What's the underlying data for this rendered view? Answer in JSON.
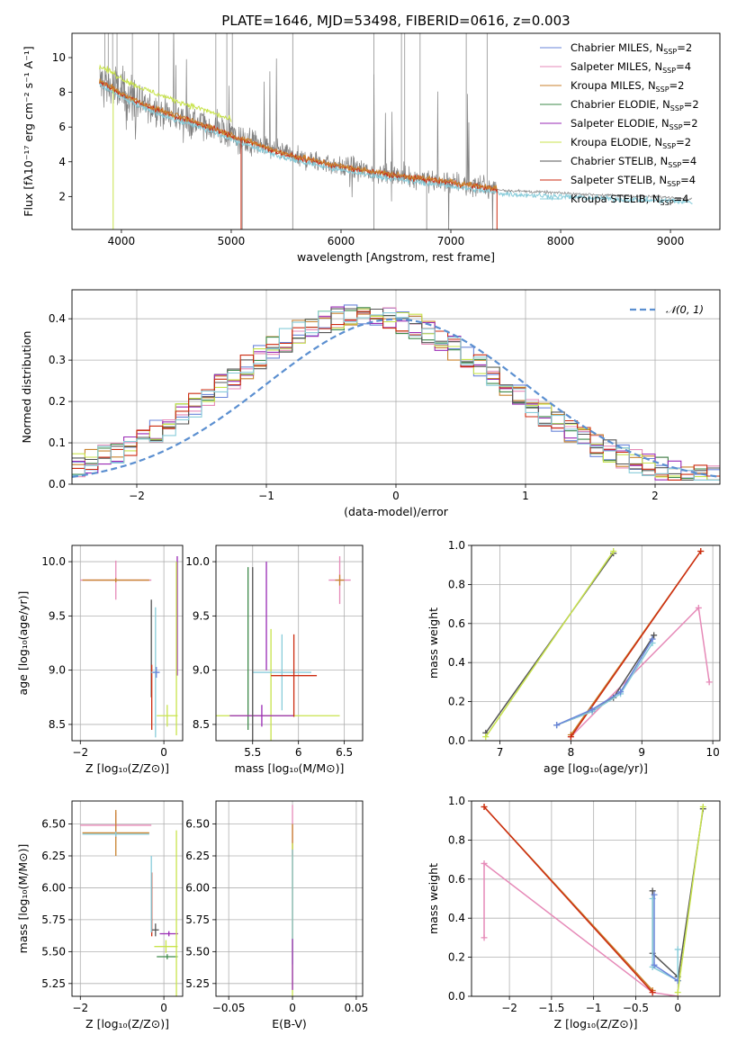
{
  "figure": {
    "title": "PLATE=1646, MJD=53498, FIBERID=0616, z=0.003"
  },
  "colors": {
    "chabrier_miles": "#6a85d9",
    "salpeter_miles": "#e68ab8",
    "kroupa_miles": "#c8822e",
    "chabrier_elodie": "#3e8a4a",
    "salpeter_elodie": "#9a2ab5",
    "kroupa_elodie": "#c8e34c",
    "chabrier_stelib": "#555555",
    "salpeter_stelib": "#cc2b10",
    "kroupa_stelib": "#88ccda",
    "data": "#808080",
    "normal": "#5b8fd0"
  },
  "legend": [
    {
      "key": "chabrier_miles",
      "label": "Chabrier MILES, N",
      "sub": "SSP",
      "suffix": "=2"
    },
    {
      "key": "salpeter_miles",
      "label": "Salpeter MILES, N",
      "sub": "SSP",
      "suffix": "=4"
    },
    {
      "key": "kroupa_miles",
      "label": "Kroupa MILES, N",
      "sub": "SSP",
      "suffix": "=2"
    },
    {
      "key": "chabrier_elodie",
      "label": "Chabrier ELODIE, N",
      "sub": "SSP",
      "suffix": "=2"
    },
    {
      "key": "salpeter_elodie",
      "label": "Salpeter ELODIE, N",
      "sub": "SSP",
      "suffix": "=2"
    },
    {
      "key": "kroupa_elodie",
      "label": "Kroupa ELODIE, N",
      "sub": "SSP",
      "suffix": "=2"
    },
    {
      "key": "chabrier_stelib",
      "label": "Chabrier STELIB, N",
      "sub": "SSP",
      "suffix": "=4"
    },
    {
      "key": "salpeter_stelib",
      "label": "Salpeter STELIB, N",
      "sub": "SSP",
      "suffix": "=4"
    },
    {
      "key": "kroupa_stelib",
      "label": "Kroupa STELIB, N",
      "sub": "SSP",
      "suffix": "=4"
    }
  ],
  "chart_data": [
    {
      "id": "spectrum",
      "type": "line",
      "xlabel": "wavelength [Angstrom, rest frame]",
      "ylabel": "Flux [fλ10⁻¹⁷ erg cm⁻² s⁻¹ A⁻¹]",
      "xlim": [
        3550,
        9450
      ],
      "ylim": [
        0.1,
        11.4
      ],
      "xticks": [
        4000,
        5000,
        6000,
        7000,
        8000,
        9000
      ],
      "yticks": [
        2,
        4,
        6,
        8,
        10
      ],
      "continuum": {
        "x": [
          3800,
          3900,
          4000,
          4200,
          4500,
          4800,
          5000,
          5500,
          6000,
          6500,
          7000,
          7500,
          8000,
          8500,
          9000,
          9200
        ],
        "y": [
          8.6,
          8.3,
          7.9,
          7.3,
          6.6,
          6.0,
          5.5,
          4.4,
          3.7,
          3.2,
          2.8,
          2.35,
          2.2,
          2.05,
          1.95,
          1.85
        ]
      },
      "model_offsets": [
        {
          "key": "kroupa_elodie",
          "range": [
            3800,
            5000
          ],
          "dy": 0.9
        },
        {
          "key": "kroupa_stelib",
          "range": [
            3800,
            9200
          ],
          "dy": -0.2
        },
        {
          "key": "salpeter_stelib",
          "range": [
            3800,
            7420
          ],
          "dy": 0.0
        },
        {
          "key": "kroupa_miles",
          "range": [
            3800,
            7420
          ],
          "dy": 0.05
        }
      ]
    },
    {
      "id": "residuals",
      "type": "line",
      "xlabel": "(data-model)/error",
      "ylabel": "Normed distribution",
      "xlim": [
        -2.5,
        2.5
      ],
      "ylim": [
        0,
        0.47
      ],
      "xticks": [
        -2,
        -1,
        0,
        1,
        2
      ],
      "yticks": [
        0.0,
        0.1,
        0.2,
        0.3,
        0.4
      ],
      "normal_label": "𝒩(0, 1)",
      "normal": {
        "mean": 0,
        "sigma": 1
      }
    },
    {
      "id": "age_vs_Z",
      "type": "scatter",
      "xlabel": "Z [log₁₀(Z/Z⊙)]",
      "ylabel": "age  [log₁₀(age/yr)]",
      "xlim": [
        -2.2,
        0.45
      ],
      "ylim": [
        8.35,
        10.15
      ],
      "xticks": [
        -2,
        0
      ],
      "yticks": [
        8.5,
        9.0,
        9.5,
        10.0
      ],
      "points": [
        {
          "key": "salpeter_miles",
          "x": -1.15,
          "y": 9.83,
          "xerr": 0.85,
          "yerr": 0.18
        },
        {
          "key": "kroupa_miles",
          "x": -1.15,
          "y": 9.83,
          "xerr": 0.8,
          "yerr": 0.02
        },
        {
          "key": "chabrier_stelib",
          "x": -0.3,
          "y": 9.2,
          "xerr": 0.0,
          "yerr": 0.45
        },
        {
          "key": "salpeter_stelib",
          "x": -0.29,
          "y": 8.75,
          "xerr": 0.0,
          "yerr": 0.3
        },
        {
          "key": "kroupa_stelib",
          "x": -0.2,
          "y": 8.98,
          "xerr": 0.1,
          "yerr": 0.6
        },
        {
          "key": "chabrier_miles",
          "x": -0.18,
          "y": 8.98,
          "xerr": 0.08,
          "yerr": 0.05
        },
        {
          "key": "kroupa_elodie",
          "x": 0.08,
          "y": 8.58,
          "xerr": 0.25,
          "yerr": 0.1
        },
        {
          "key": "salpeter_elodie",
          "x": 0.32,
          "y": 9.5,
          "xerr": 0.0,
          "yerr": 0.55
        },
        {
          "key": "kroupa_elodie",
          "x": 0.3,
          "y": 9.2,
          "xerr": 0.0,
          "yerr": 0.8
        }
      ]
    },
    {
      "id": "age_vs_mass",
      "type": "scatter",
      "xlabel": "mass [log₁₀(M/M⊙)]",
      "ylabel": "",
      "xlim": [
        5.1,
        6.7
      ],
      "ylim": [
        8.35,
        10.15
      ],
      "xticks": [
        5.5,
        6.0,
        6.5
      ],
      "yticks": [
        8.5,
        9.0,
        9.5,
        10.0
      ],
      "points": [
        {
          "key": "chabrier_elodie",
          "x": 5.45,
          "y": 9.2,
          "xerr": 0.0,
          "yerr": 0.75
        },
        {
          "key": "salpeter_elodie",
          "x": 5.65,
          "y": 9.5,
          "xerr": 0.0,
          "yerr": 0.5
        },
        {
          "key": "kroupa_elodie",
          "x": 5.7,
          "y": 8.58,
          "xerr": 0.75,
          "yerr": 0.8
        },
        {
          "key": "salpeter_elodie",
          "x": 5.6,
          "y": 8.58,
          "xerr": 0.35,
          "yerr": 0.1
        },
        {
          "key": "kroupa_stelib",
          "x": 5.82,
          "y": 8.98,
          "xerr": 0.32,
          "yerr": 0.35
        },
        {
          "key": "salpeter_stelib",
          "x": 5.95,
          "y": 8.95,
          "xerr": 0.25,
          "yerr": 0.38
        },
        {
          "key": "chabrier_stelib",
          "x": 5.5,
          "y": 9.0,
          "xerr": 0.0,
          "yerr": 0.95
        },
        {
          "key": "salpeter_miles",
          "x": 6.45,
          "y": 9.83,
          "xerr": 0.12,
          "yerr": 0.22
        },
        {
          "key": "kroupa_miles",
          "x": 6.45,
          "y": 9.83,
          "xerr": 0.05,
          "yerr": 0.05
        }
      ]
    },
    {
      "id": "weight_vs_age",
      "type": "line",
      "xlabel": "age  [log₁₀(age/yr)]",
      "ylabel": "mass weight",
      "xlim": [
        6.6,
        10.1
      ],
      "ylim": [
        0,
        1.0
      ],
      "xticks": [
        7,
        8,
        9,
        10
      ],
      "yticks": [
        0.0,
        0.2,
        0.4,
        0.6,
        0.8,
        1.0
      ],
      "series": [
        {
          "key": "salpeter_miles",
          "x": [
            8.0,
            9.8,
            9.95
          ],
          "y": [
            0.02,
            0.68,
            0.3
          ]
        },
        {
          "key": "kroupa_miles",
          "x": [
            8.0,
            9.83
          ],
          "y": [
            0.03,
            0.97
          ]
        },
        {
          "key": "salpeter_stelib",
          "x": [
            8.0,
            9.83
          ],
          "y": [
            0.02,
            0.97
          ]
        },
        {
          "key": "chabrier_stelib",
          "x": [
            6.8,
            8.6
          ],
          "y": [
            0.04,
            0.96
          ]
        },
        {
          "key": "kroupa_elodie",
          "x": [
            6.8,
            8.6
          ],
          "y": [
            0.02,
            0.97
          ]
        },
        {
          "key": "chabrier_stelib",
          "x": [
            7.8,
            8.3,
            8.6,
            9.17
          ],
          "y": [
            0.08,
            0.15,
            0.22,
            0.54
          ]
        },
        {
          "key": "kroupa_stelib",
          "x": [
            7.8,
            8.3,
            8.7,
            9.15
          ],
          "y": [
            0.08,
            0.15,
            0.24,
            0.5
          ]
        },
        {
          "key": "chabrier_miles",
          "x": [
            7.8,
            8.3,
            8.7,
            9.15
          ],
          "y": [
            0.08,
            0.16,
            0.25,
            0.52
          ]
        }
      ]
    },
    {
      "id": "mass_vs_Z",
      "type": "scatter",
      "xlabel": "Z [log₁₀(Z/Z⊙)]",
      "ylabel": "mass [log₁₀(M/M⊙)]",
      "xlim": [
        -2.2,
        0.45
      ],
      "ylim": [
        5.15,
        6.68
      ],
      "xticks": [
        -2,
        0
      ],
      "yticks": [
        5.25,
        5.5,
        5.75,
        6.0,
        6.25,
        6.5
      ],
      "points": [
        {
          "key": "salpeter_miles",
          "x": -1.15,
          "y": 6.49,
          "xerr": 0.85,
          "yerr": 0.1
        },
        {
          "key": "kroupa_miles",
          "x": -1.15,
          "y": 6.43,
          "xerr": 0.8,
          "yerr": 0.18
        },
        {
          "key": "kroupa_stelib",
          "x": -1.15,
          "y": 6.42,
          "xerr": 0.8,
          "yerr": 0.02
        },
        {
          "key": "salpeter_stelib",
          "x": -0.29,
          "y": 5.87,
          "xerr": 0.0,
          "yerr": 0.25
        },
        {
          "key": "kroupa_stelib",
          "x": -0.3,
          "y": 5.95,
          "xerr": 0.0,
          "yerr": 0.3
        },
        {
          "key": "chabrier_stelib",
          "x": -0.2,
          "y": 5.67,
          "xerr": 0.08,
          "yerr": 0.05
        },
        {
          "key": "kroupa_elodie",
          "x": 0.05,
          "y": 5.54,
          "xerr": 0.28,
          "yerr": 0.05
        },
        {
          "key": "salpeter_elodie",
          "x": 0.12,
          "y": 5.64,
          "xerr": 0.22,
          "yerr": 0.02
        },
        {
          "key": "chabrier_elodie",
          "x": 0.08,
          "y": 5.46,
          "xerr": 0.25,
          "yerr": 0.02
        },
        {
          "key": "kroupa_elodie",
          "x": 0.3,
          "y": 5.8,
          "xerr": 0.0,
          "yerr": 0.65
        }
      ]
    },
    {
      "id": "mass_vs_ebv",
      "type": "scatter",
      "xlabel": "E(B-V)",
      "ylabel": "",
      "xlim": [
        -0.06,
        0.055
      ],
      "ylim": [
        5.15,
        6.68
      ],
      "xticks": [
        -0.05,
        0.0,
        0.05
      ],
      "yticks": [
        5.25,
        5.5,
        5.75,
        6.0,
        6.25,
        6.5
      ],
      "points": [
        {
          "key": "salpeter_miles",
          "x": 0.0,
          "y": 6.45,
          "xerr": 0.0,
          "yerr": 0.2
        },
        {
          "key": "kroupa_miles",
          "x": 0.0,
          "y": 6.4,
          "xerr": 0.0,
          "yerr": 0.1
        },
        {
          "key": "salpeter_stelib",
          "x": 0.0,
          "y": 5.95,
          "xerr": 0.0,
          "yerr": 0.35
        },
        {
          "key": "kroupa_elodie",
          "x": 0.0,
          "y": 5.75,
          "xerr": 0.0,
          "yerr": 0.6
        },
        {
          "key": "kroupa_stelib",
          "x": 0.0,
          "y": 5.85,
          "xerr": 0.0,
          "yerr": 0.45
        },
        {
          "key": "salpeter_elodie",
          "x": 0.0,
          "y": 5.4,
          "xerr": 0.0,
          "yerr": 0.2
        }
      ]
    },
    {
      "id": "weight_vs_Z",
      "type": "line",
      "xlabel": "Z [log₁₀(Z/Z⊙)]",
      "ylabel": "mass weight",
      "xlim": [
        -2.45,
        0.5
      ],
      "ylim": [
        0,
        1.0
      ],
      "xticks": [
        -2.0,
        -1.5,
        -1.0,
        -0.5,
        0.0
      ],
      "yticks": [
        0.0,
        0.2,
        0.4,
        0.6,
        0.8,
        1.0
      ],
      "series": [
        {
          "key": "salpeter_miles",
          "x": [
            -2.3,
            -2.3,
            -0.3,
            0.0
          ],
          "y": [
            0.3,
            0.68,
            0.02,
            0.0
          ]
        },
        {
          "key": "kroupa_miles",
          "x": [
            -2.3,
            -0.3
          ],
          "y": [
            0.97,
            0.03
          ]
        },
        {
          "key": "salpeter_stelib",
          "x": [
            -2.3,
            -0.3
          ],
          "y": [
            0.97,
            0.02
          ]
        },
        {
          "key": "chabrier_stelib",
          "x": [
            -0.3,
            -0.3,
            0.0,
            0.0,
            0.3
          ],
          "y": [
            0.54,
            0.22,
            0.1,
            0.08,
            0.96
          ]
        },
        {
          "key": "kroupa_stelib",
          "x": [
            -0.3,
            -0.3,
            0.0,
            0.0
          ],
          "y": [
            0.5,
            0.15,
            0.08,
            0.24
          ]
        },
        {
          "key": "chabrier_miles",
          "x": [
            -0.28,
            -0.28,
            0.0
          ],
          "y": [
            0.52,
            0.16,
            0.08
          ]
        },
        {
          "key": "kroupa_elodie",
          "x": [
            0.0,
            0.3
          ],
          "y": [
            0.02,
            0.97
          ]
        }
      ]
    }
  ]
}
